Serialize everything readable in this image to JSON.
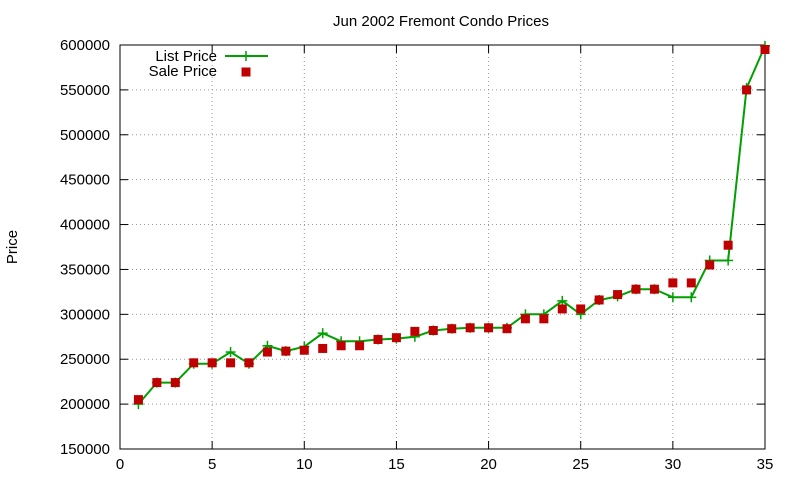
{
  "chart_data": {
    "type": "line",
    "title": "Jun 2002 Fremont Condo Prices",
    "xlabel": "",
    "ylabel": "Price",
    "xlim": [
      0,
      35
    ],
    "ylim": [
      150000,
      600000
    ],
    "x_ticks": [
      "0",
      "5",
      "10",
      "15",
      "20",
      "25",
      "30",
      "35"
    ],
    "y_ticks": [
      "150000",
      "200000",
      "250000",
      "300000",
      "350000",
      "400000",
      "450000",
      "500000",
      "550000",
      "600000"
    ],
    "grid": true,
    "legend_position": "top-left",
    "colors": {
      "list": "#00a000",
      "sale": "#c00000"
    },
    "series": [
      {
        "name": "List Price",
        "style": "line-plus",
        "x": [
          1,
          2,
          3,
          4,
          5,
          6,
          7,
          8,
          9,
          10,
          11,
          12,
          13,
          14,
          15,
          16,
          17,
          18,
          19,
          20,
          21,
          22,
          23,
          24,
          25,
          26,
          27,
          28,
          29,
          30,
          31,
          32,
          33,
          34,
          35
        ],
        "values": [
          200000,
          224000,
          224000,
          245000,
          245000,
          258000,
          245000,
          265000,
          259000,
          264000,
          279000,
          270000,
          270000,
          272000,
          273000,
          275000,
          282000,
          284000,
          285000,
          285000,
          285000,
          300000,
          300000,
          315000,
          300000,
          316000,
          320000,
          328000,
          328000,
          319000,
          319000,
          360000,
          360000,
          552000,
          599000
        ]
      },
      {
        "name": "Sale Price",
        "style": "square-points",
        "x": [
          1,
          2,
          3,
          4,
          5,
          6,
          7,
          8,
          9,
          10,
          11,
          12,
          13,
          14,
          15,
          16,
          17,
          18,
          19,
          20,
          21,
          22,
          23,
          24,
          25,
          26,
          27,
          28,
          29,
          30,
          31,
          32,
          33,
          34,
          35
        ],
        "values": [
          205000,
          224000,
          224000,
          246000,
          246000,
          246000,
          246000,
          258000,
          259000,
          260000,
          262000,
          265000,
          265000,
          272000,
          274000,
          281000,
          282000,
          284000,
          285000,
          285000,
          284000,
          295000,
          295000,
          306000,
          306000,
          316000,
          322000,
          328000,
          328000,
          335000,
          335000,
          355000,
          377000,
          550000,
          595000
        ]
      }
    ]
  }
}
